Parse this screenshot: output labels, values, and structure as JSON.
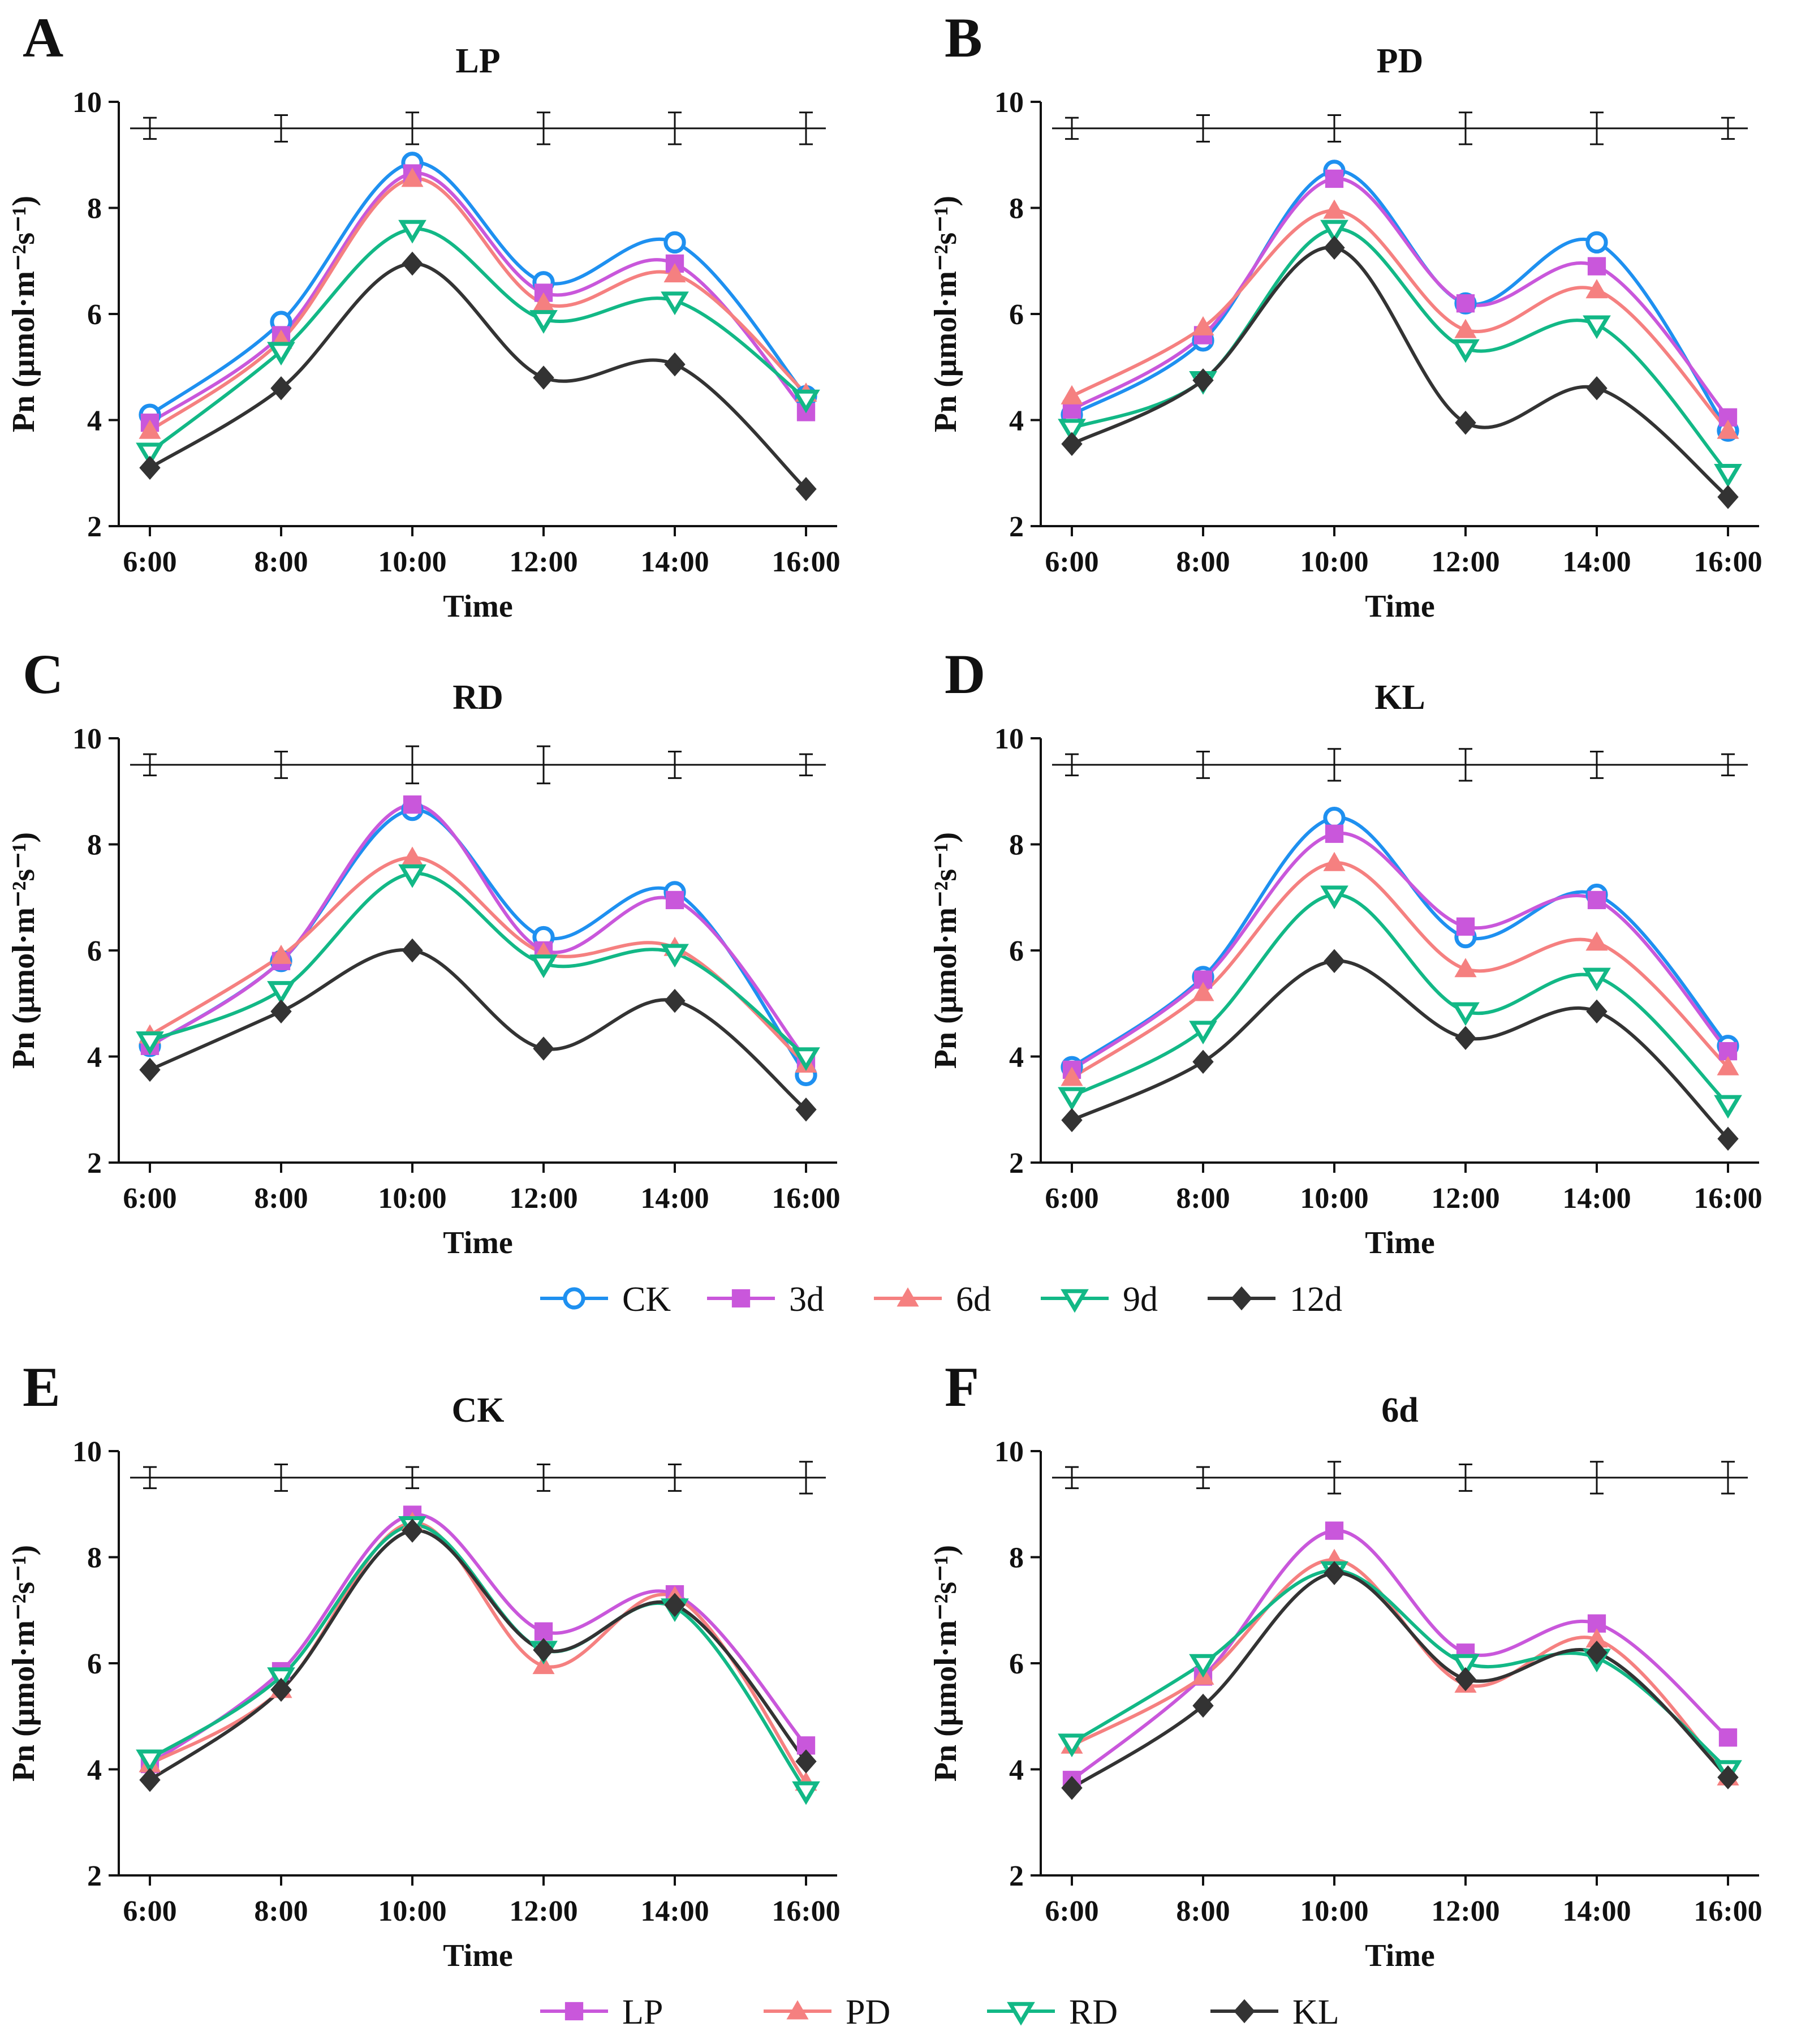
{
  "legends": [
    {
      "id": "treat",
      "entries": [
        {
          "key": "CK",
          "label": "CK",
          "color": "#1E90F0",
          "marker": "circle-open"
        },
        {
          "key": "3d",
          "label": "3d",
          "color": "#C957DB",
          "marker": "square"
        },
        {
          "key": "6d",
          "label": "6d",
          "color": "#F58080",
          "marker": "triangle-up"
        },
        {
          "key": "9d",
          "label": "9d",
          "color": "#12B886",
          "marker": "triangle-down-open"
        },
        {
          "key": "12d",
          "label": "12d",
          "color": "#333333",
          "marker": "diamond"
        }
      ]
    },
    {
      "id": "cult",
      "entries": [
        {
          "key": "LP",
          "label": "LP",
          "color": "#C957DB",
          "marker": "square"
        },
        {
          "key": "PD",
          "label": "PD",
          "color": "#F58080",
          "marker": "triangle-up"
        },
        {
          "key": "RD",
          "label": "RD",
          "color": "#12B886",
          "marker": "triangle-down-open"
        },
        {
          "key": "KL",
          "label": "KL",
          "color": "#333333",
          "marker": "diamond"
        }
      ]
    }
  ],
  "chart_data": [
    {
      "type": "line",
      "panel": "A",
      "title": "LP",
      "legend": "treat",
      "categories": [
        "6:00",
        "8:00",
        "10:00",
        "12:00",
        "14:00",
        "16:00"
      ],
      "xlabel": "Time",
      "ylabel": "Pn (μmol·m⁻²s⁻¹)",
      "ylim": [
        2,
        10
      ],
      "yticks": [
        "2",
        "4",
        "6",
        "8",
        "10"
      ],
      "reference": {
        "y": 9.5,
        "err": [
          0.2,
          0.25,
          0.3,
          0.3,
          0.3,
          0.3
        ]
      },
      "series": [
        {
          "name": "CK",
          "values": [
            4.1,
            5.85,
            8.85,
            6.6,
            7.35,
            4.45
          ]
        },
        {
          "name": "3d",
          "values": [
            3.95,
            5.6,
            8.65,
            6.4,
            6.95,
            4.15
          ]
        },
        {
          "name": "6d",
          "values": [
            3.8,
            5.5,
            8.55,
            6.2,
            6.75,
            4.5
          ]
        },
        {
          "name": "9d",
          "values": [
            3.4,
            5.3,
            7.6,
            5.9,
            6.25,
            4.4
          ]
        },
        {
          "name": "12d",
          "values": [
            3.1,
            4.6,
            6.95,
            4.8,
            5.05,
            2.7
          ]
        }
      ]
    },
    {
      "type": "line",
      "panel": "B",
      "title": "PD",
      "legend": "treat",
      "categories": [
        "6:00",
        "8:00",
        "10:00",
        "12:00",
        "14:00",
        "16:00"
      ],
      "xlabel": "Time",
      "ylabel": "Pn (μmol·m⁻²s⁻¹)",
      "ylim": [
        2,
        10
      ],
      "yticks": [
        "2",
        "4",
        "6",
        "8",
        "10"
      ],
      "reference": {
        "y": 9.5,
        "err": [
          0.2,
          0.25,
          0.25,
          0.3,
          0.3,
          0.2
        ]
      },
      "series": [
        {
          "name": "CK",
          "values": [
            4.1,
            5.5,
            8.7,
            6.2,
            7.35,
            3.8
          ]
        },
        {
          "name": "3d",
          "values": [
            4.2,
            5.6,
            8.55,
            6.2,
            6.9,
            4.05
          ]
        },
        {
          "name": "6d",
          "values": [
            4.45,
            5.75,
            7.95,
            5.7,
            6.45,
            3.8
          ]
        },
        {
          "name": "9d",
          "values": [
            3.85,
            4.75,
            7.6,
            5.35,
            5.8,
            3.0
          ]
        },
        {
          "name": "12d",
          "values": [
            3.55,
            4.75,
            7.25,
            3.95,
            4.6,
            2.55
          ]
        }
      ]
    },
    {
      "type": "line",
      "panel": "C",
      "title": "RD",
      "legend": "treat",
      "categories": [
        "6:00",
        "8:00",
        "10:00",
        "12:00",
        "14:00",
        "16:00"
      ],
      "xlabel": "Time",
      "ylabel": "Pn (μmol·m⁻²s⁻¹)",
      "ylim": [
        2,
        10
      ],
      "yticks": [
        "2",
        "4",
        "6",
        "8",
        "10"
      ],
      "reference": {
        "y": 9.5,
        "err": [
          0.2,
          0.25,
          0.35,
          0.35,
          0.25,
          0.2
        ]
      },
      "series": [
        {
          "name": "CK",
          "values": [
            4.2,
            5.8,
            8.65,
            6.25,
            7.1,
            3.65
          ]
        },
        {
          "name": "3d",
          "values": [
            4.2,
            5.8,
            8.75,
            6.0,
            6.95,
            3.95
          ]
        },
        {
          "name": "6d",
          "values": [
            4.4,
            5.9,
            7.75,
            5.95,
            6.05,
            3.85
          ]
        },
        {
          "name": "9d",
          "values": [
            4.3,
            5.25,
            7.45,
            5.75,
            5.95,
            4.0
          ]
        },
        {
          "name": "12d",
          "values": [
            3.75,
            4.85,
            6.0,
            4.15,
            5.05,
            3.0
          ]
        }
      ]
    },
    {
      "type": "line",
      "panel": "D",
      "title": "KL",
      "legend": "treat",
      "categories": [
        "6:00",
        "8:00",
        "10:00",
        "12:00",
        "14:00",
        "16:00"
      ],
      "xlabel": "Time",
      "ylabel": "Pn (μmol·m⁻²s⁻¹)",
      "ylim": [
        2,
        10
      ],
      "yticks": [
        "2",
        "4",
        "6",
        "8",
        "10"
      ],
      "reference": {
        "y": 9.5,
        "err": [
          0.2,
          0.25,
          0.3,
          0.3,
          0.25,
          0.2
        ]
      },
      "series": [
        {
          "name": "CK",
          "values": [
            3.8,
            5.5,
            8.5,
            6.25,
            7.05,
            4.2
          ]
        },
        {
          "name": "3d",
          "values": [
            3.75,
            5.45,
            8.2,
            6.45,
            6.95,
            4.1
          ]
        },
        {
          "name": "6d",
          "values": [
            3.6,
            5.2,
            7.65,
            5.65,
            6.15,
            3.8
          ]
        },
        {
          "name": "9d",
          "values": [
            3.25,
            4.5,
            7.05,
            4.85,
            5.5,
            3.1
          ]
        },
        {
          "name": "12d",
          "values": [
            2.8,
            3.9,
            5.8,
            4.35,
            4.85,
            2.45
          ]
        }
      ]
    },
    {
      "type": "line",
      "panel": "E",
      "title": "CK",
      "legend": "cult",
      "categories": [
        "6:00",
        "8:00",
        "10:00",
        "12:00",
        "14:00",
        "16:00"
      ],
      "xlabel": "Time",
      "ylabel": "Pn (μmol·m⁻²s⁻¹)",
      "ylim": [
        2,
        10
      ],
      "yticks": [
        "2",
        "4",
        "6",
        "8",
        "10"
      ],
      "reference": {
        "y": 9.5,
        "err": [
          0.2,
          0.25,
          0.2,
          0.25,
          0.25,
          0.3
        ]
      },
      "series": [
        {
          "name": "LP",
          "values": [
            4.1,
            5.85,
            8.8,
            6.6,
            7.3,
            4.45
          ]
        },
        {
          "name": "PD",
          "values": [
            4.1,
            5.5,
            8.65,
            5.95,
            7.25,
            3.75
          ]
        },
        {
          "name": "RD",
          "values": [
            4.2,
            5.75,
            8.6,
            6.25,
            7.05,
            3.6
          ]
        },
        {
          "name": "KL",
          "values": [
            3.8,
            5.5,
            8.5,
            6.25,
            7.1,
            4.15
          ]
        }
      ]
    },
    {
      "type": "line",
      "panel": "F",
      "title": "6d",
      "legend": "cult",
      "categories": [
        "6:00",
        "8:00",
        "10:00",
        "12:00",
        "14:00",
        "16:00"
      ],
      "xlabel": "Time",
      "ylabel": "Pn (μmol·m⁻²s⁻¹)",
      "ylim": [
        2,
        10
      ],
      "yticks": [
        "2",
        "4",
        "6",
        "8",
        "10"
      ],
      "reference": {
        "y": 9.5,
        "err": [
          0.2,
          0.2,
          0.3,
          0.25,
          0.3,
          0.3
        ]
      },
      "series": [
        {
          "name": "LP",
          "values": [
            3.8,
            5.75,
            8.5,
            6.2,
            6.75,
            4.6
          ]
        },
        {
          "name": "PD",
          "values": [
            4.45,
            5.75,
            7.95,
            5.6,
            6.45,
            3.85
          ]
        },
        {
          "name": "RD",
          "values": [
            4.5,
            6.0,
            7.75,
            6.0,
            6.1,
            4.0
          ]
        },
        {
          "name": "KL",
          "values": [
            3.65,
            5.2,
            7.7,
            5.7,
            6.2,
            3.85
          ]
        }
      ]
    }
  ]
}
